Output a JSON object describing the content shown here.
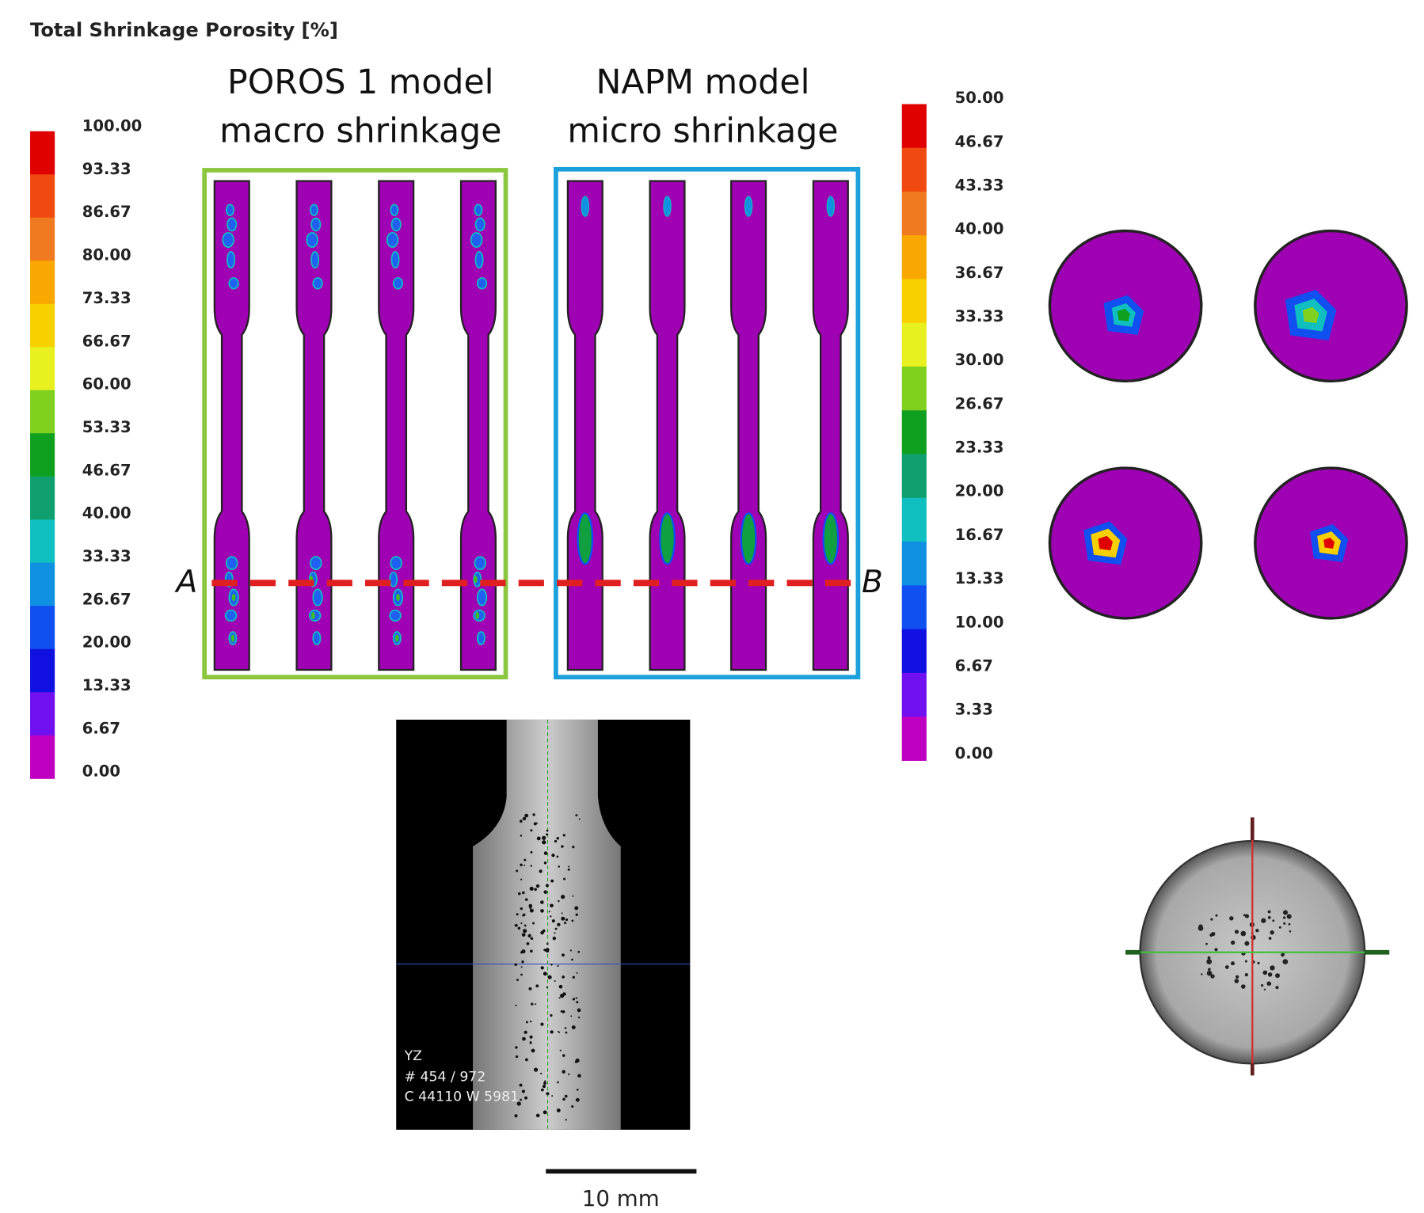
{
  "title": "Total Shrinkage Porosity [%]",
  "left_legend": {
    "labels": [
      "100.00",
      "93.33",
      "86.67",
      "80.00",
      "73.33",
      "66.67",
      "60.00",
      "53.33",
      "46.67",
      "40.00",
      "33.33",
      "26.67",
      "20.00",
      "13.33",
      "6.67",
      "0.00"
    ]
  },
  "right_legend": {
    "labels": [
      "50.00",
      "46.67",
      "43.33",
      "40.00",
      "36.67",
      "33.33",
      "30.00",
      "26.67",
      "23.33",
      "20.00",
      "16.67",
      "13.33",
      "10.00",
      "6.67",
      "3.33",
      "0.00"
    ]
  },
  "panels": [
    {
      "title_lines": [
        "POROS 1 model",
        "macro shrinkage"
      ]
    },
    {
      "title_lines": [
        "NAPM model",
        "micro shrinkage"
      ]
    }
  ],
  "section_line": {
    "start": "A",
    "end": "B"
  },
  "ct_image": {
    "lines": [
      "YZ",
      "# 454 / 972",
      "C 44110 W 5981"
    ]
  },
  "scale_bar": "10 mm"
}
